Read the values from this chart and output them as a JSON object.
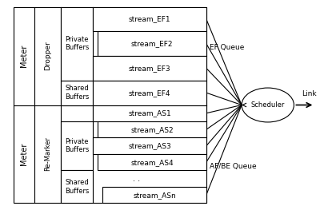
{
  "bg_color": "#ffffff",
  "line_color": "#000000",
  "text_color": "#000000",
  "fig_width": 4.0,
  "fig_height": 2.63,
  "dpi": 100,
  "ef_streams": [
    "stream_EF1",
    "stream_EF2",
    "stream_EF3"
  ],
  "ef_shared": [
    "stream_EF4"
  ],
  "as_top": [
    "stream_AS1"
  ],
  "as_private": [
    "stream_AS2",
    "stream_AS3",
    "stream_AS4"
  ],
  "as_shared": [
    "stream_ASn"
  ],
  "ef_queue_label": "EF Queue",
  "afbe_queue_label": "AF/BE Queue",
  "link_label": "Link",
  "meter_top_label": "Meter",
  "meter_bottom_label": "Meter",
  "dropper_label": "Dropper",
  "remarker_label": "Re-Marker",
  "private_buffers_top_label": "Private\nBuffers",
  "shared_buffers_top_label": "Shared\nBuffers",
  "private_buffers_bot_label": "Private\nBuffers",
  "shared_buffers_bot_label": "Shared\nBuffers",
  "scheduler_label": "Scheduler",
  "ef_indents": [
    0.0,
    0.015,
    0.0
  ],
  "as_priv_indents": [
    0.015,
    0.0,
    0.015
  ],
  "asn_indent": 0.03
}
